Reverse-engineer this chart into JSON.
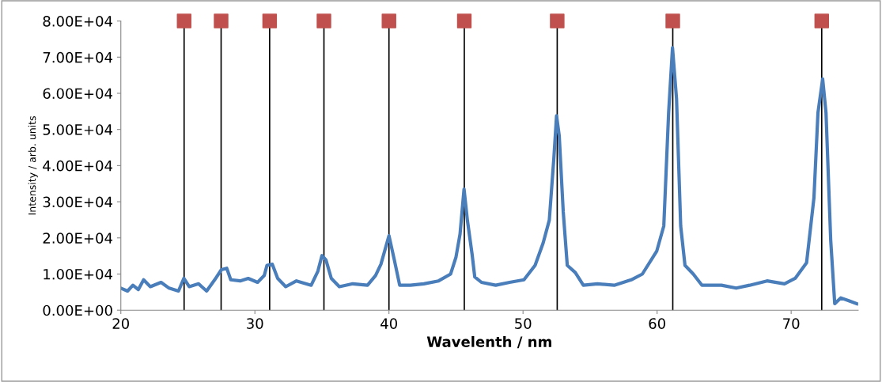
{
  "chart_data": {
    "type": "line",
    "xlabel": "Wavelenth / nm",
    "ylabel": "Intensity / arb. units",
    "xlim": [
      20,
      75
    ],
    "xticks": [
      20,
      30,
      40,
      50,
      60,
      70
    ],
    "ylim": [
      0,
      80000
    ],
    "yticks": [
      {
        "value": 0,
        "label": "0.00E+00"
      },
      {
        "value": 10000,
        "label": "1.00E+04"
      },
      {
        "value": 20000,
        "label": "2.00E+04"
      },
      {
        "value": 30000,
        "label": "3.00E+04"
      },
      {
        "value": 40000,
        "label": "4.00E+04"
      },
      {
        "value": 50000,
        "label": "5.00E+04"
      },
      {
        "value": 60000,
        "label": "6.00E+04"
      },
      {
        "value": 70000,
        "label": "7.00E+04"
      },
      {
        "value": 80000,
        "label": "8.00E+04"
      }
    ],
    "grid": false,
    "legend": false,
    "marker": "none",
    "line_style": "solid",
    "series": [
      {
        "color": "#4a7ebb",
        "x": [
          20,
          20.5,
          20.9,
          21.3,
          21.7,
          22.2,
          23.0,
          23.6,
          24.3,
          24.7,
          25.1,
          25.8,
          26.4,
          27.0,
          27.5,
          27.9,
          28.2,
          28.9,
          29.5,
          30.2,
          30.7,
          30.9,
          31.3,
          31.7,
          32.3,
          33.1,
          34.2,
          34.7,
          35.0,
          35.3,
          35.7,
          36.3,
          37.3,
          38.4,
          39.0,
          39.4,
          40.0,
          40.4,
          40.8,
          41.6,
          42.6,
          43.7,
          44.6,
          45.0,
          45.3,
          45.6,
          45.85,
          46.2,
          46.4,
          46.9,
          47.96,
          49.0,
          50.07,
          50.9,
          51.5,
          51.96,
          52.3,
          52.5,
          52.7,
          53.0,
          53.3,
          53.9,
          54.5,
          55.55,
          56.8,
          58.07,
          58.9,
          59.97,
          60.5,
          60.86,
          61.15,
          61.45,
          61.76,
          62.08,
          62.7,
          63.35,
          64.8,
          65.9,
          66.9,
          68.2,
          69.5,
          70.3,
          71.15,
          71.7,
          72.0,
          72.35,
          72.6,
          72.95,
          73.25,
          73.7,
          74.3,
          74.9
        ],
        "values": [
          6100,
          5300,
          6900,
          5700,
          8400,
          6500,
          7700,
          6100,
          5300,
          8800,
          6500,
          7300,
          5300,
          8400,
          11200,
          11600,
          8400,
          8100,
          8800,
          7700,
          9600,
          12400,
          12700,
          8800,
          6500,
          8100,
          6900,
          10800,
          15100,
          13900,
          8800,
          6500,
          7300,
          6900,
          9600,
          12700,
          20600,
          13900,
          6900,
          6900,
          7300,
          8100,
          10000,
          14700,
          21000,
          33500,
          24900,
          15500,
          9200,
          7700,
          6900,
          7700,
          8400,
          12400,
          18600,
          24900,
          42100,
          53800,
          48300,
          27200,
          12400,
          10400,
          6900,
          7300,
          6900,
          8400,
          10000,
          16300,
          23300,
          54600,
          72600,
          58500,
          23300,
          12400,
          10000,
          6900,
          6900,
          6100,
          6900,
          8100,
          7300,
          8800,
          13100,
          31100,
          54600,
          64000,
          54600,
          19400,
          1800,
          3400,
          2600,
          1800
        ]
      },
      {
        "type": "scatter",
        "color": "#c0504d",
        "marker": "square",
        "x": [
          24.72,
          27.48,
          31.1,
          35.15,
          40.0,
          45.62,
          52.55,
          61.17,
          72.28
        ],
        "values": [
          80000,
          80000,
          80000,
          80000,
          80000,
          80000,
          80000,
          80000,
          80000
        ]
      }
    ],
    "ref_lines": [
      {
        "axis": "x",
        "value": 24.72,
        "color": "#000000"
      },
      {
        "axis": "x",
        "value": 27.48,
        "color": "#000000"
      },
      {
        "axis": "x",
        "value": 31.1,
        "color": "#000000"
      },
      {
        "axis": "x",
        "value": 35.15,
        "color": "#000000"
      },
      {
        "axis": "x",
        "value": 40.0,
        "color": "#000000"
      },
      {
        "axis": "x",
        "value": 45.62,
        "color": "#000000"
      },
      {
        "axis": "x",
        "value": 52.55,
        "color": "#000000"
      },
      {
        "axis": "x",
        "value": 61.17,
        "color": "#000000"
      },
      {
        "axis": "x",
        "value": 72.28,
        "color": "#000000"
      }
    ]
  }
}
